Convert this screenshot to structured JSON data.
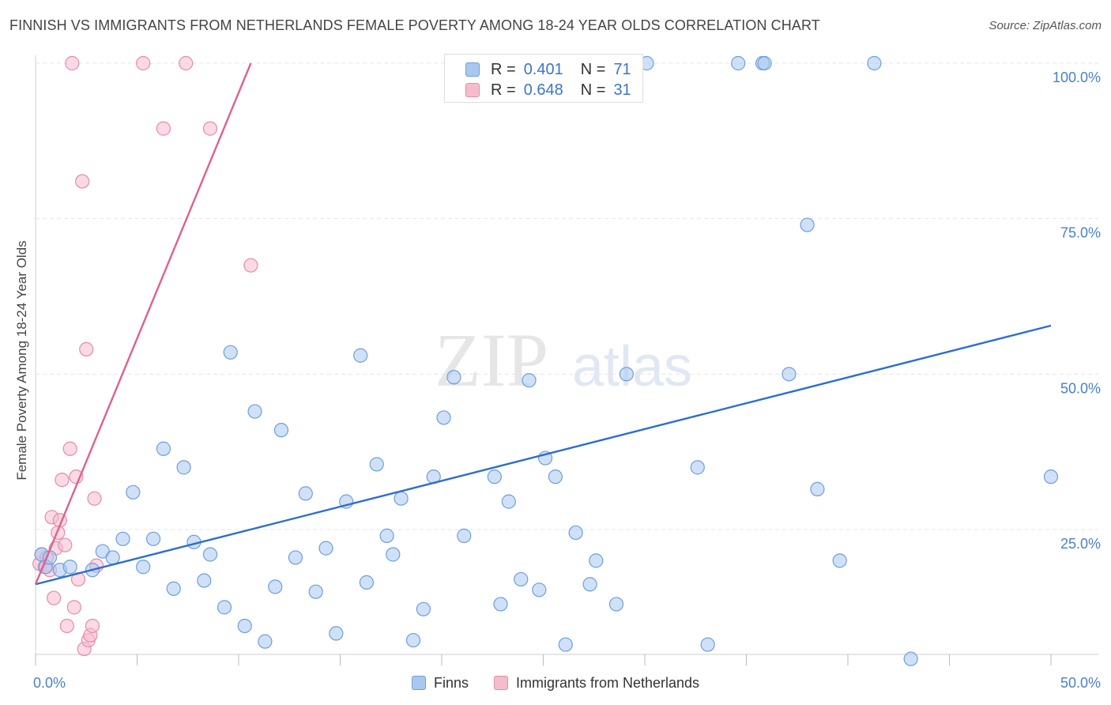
{
  "header": {
    "title": "FINNISH VS IMMIGRANTS FROM NETHERLANDS FEMALE POVERTY AMONG 18-24 YEAR OLDS CORRELATION CHART",
    "source": "Source: ZipAtlas.com"
  },
  "watermark": {
    "zip": "ZIP",
    "atlas": "atlas"
  },
  "legend_top": {
    "r_label": "R =",
    "n_label": "N =",
    "finns": {
      "r": "0.401",
      "n": "71"
    },
    "netherlands": {
      "r": "0.648",
      "n": "31"
    }
  },
  "colors": {
    "finns_fill": "#a9c8f0",
    "finns_stroke": "#6a9fe0",
    "finns_line": "#2d6ecf",
    "nl_fill": "#f6bccd",
    "nl_stroke": "#ea8aa8",
    "nl_line": "#e0608e",
    "tick_label": "#4a80cc"
  },
  "chart_data": {
    "type": "scatter",
    "title": "FINNISH VS IMMIGRANTS FROM NETHERLANDS FEMALE POVERTY AMONG 18-24 YEAR OLDS CORRELATION CHART",
    "xlabel": "",
    "ylabel": "Female Poverty Among 18-24 Year Olds",
    "xlim": [
      0,
      50
    ],
    "ylim": [
      0,
      103
    ],
    "x_tick_labels": [
      {
        "value": 0,
        "label": "0.0%"
      },
      {
        "value": 50,
        "label": "50.0%"
      }
    ],
    "y_tick_labels": [
      {
        "value": 25,
        "label": "25.0%"
      },
      {
        "value": 50,
        "label": "50.0%"
      },
      {
        "value": 75,
        "label": "75.0%"
      },
      {
        "value": 100,
        "label": "100.0%"
      }
    ],
    "grid": true,
    "legend_placement": "bottom-center",
    "series": [
      {
        "name": "Finns",
        "r": 0.401,
        "n": 71,
        "trend": [
          [
            0,
            16.2
          ],
          [
            50,
            57.8
          ]
        ],
        "points": [
          [
            0.3,
            21
          ],
          [
            0.5,
            19
          ],
          [
            0.7,
            20.5
          ],
          [
            1.2,
            18.5
          ],
          [
            1.7,
            19
          ],
          [
            2.8,
            18.5
          ],
          [
            3.3,
            21.5
          ],
          [
            3.8,
            20.5
          ],
          [
            4.3,
            23.5
          ],
          [
            4.8,
            31
          ],
          [
            5.3,
            19
          ],
          [
            5.8,
            23.5
          ],
          [
            6.3,
            38
          ],
          [
            6.8,
            15.5
          ],
          [
            7.3,
            35
          ],
          [
            7.8,
            23
          ],
          [
            8.3,
            16.8
          ],
          [
            8.6,
            21
          ],
          [
            9.3,
            12.5
          ],
          [
            9.6,
            53.5
          ],
          [
            10.3,
            9.5
          ],
          [
            10.8,
            44
          ],
          [
            11.3,
            7
          ],
          [
            11.8,
            15.8
          ],
          [
            12.1,
            41
          ],
          [
            12.8,
            20.5
          ],
          [
            13.3,
            30.8
          ],
          [
            13.8,
            15
          ],
          [
            14.3,
            22
          ],
          [
            14.8,
            8.3
          ],
          [
            15.3,
            29.5
          ],
          [
            16.0,
            53
          ],
          [
            16.3,
            16.5
          ],
          [
            16.8,
            35.5
          ],
          [
            17.3,
            24
          ],
          [
            17.6,
            21
          ],
          [
            18.0,
            30
          ],
          [
            18.6,
            7.2
          ],
          [
            19.1,
            12.2
          ],
          [
            19.6,
            33.5
          ],
          [
            20.1,
            43
          ],
          [
            20.6,
            49.5
          ],
          [
            21.1,
            24
          ],
          [
            22.6,
            33.5
          ],
          [
            22.9,
            13
          ],
          [
            23.3,
            29.5
          ],
          [
            23.9,
            17
          ],
          [
            24.3,
            49
          ],
          [
            24.8,
            15.3
          ],
          [
            25.1,
            36.5
          ],
          [
            25.6,
            33.5
          ],
          [
            26.1,
            6.5
          ],
          [
            26.6,
            24.5
          ],
          [
            27.3,
            16.2
          ],
          [
            27.6,
            20
          ],
          [
            28.6,
            13
          ],
          [
            29.1,
            50
          ],
          [
            30.1,
            100
          ],
          [
            32.6,
            35
          ],
          [
            33.1,
            6.5
          ],
          [
            34.6,
            100
          ],
          [
            35.8,
            100
          ],
          [
            35.9,
            100
          ],
          [
            37.1,
            50
          ],
          [
            38.0,
            74
          ],
          [
            38.5,
            31.5
          ],
          [
            39.6,
            20
          ],
          [
            41.3,
            100
          ],
          [
            43.1,
            4.2
          ],
          [
            50.0,
            33.5
          ],
          [
            21.6,
            100
          ]
        ]
      },
      {
        "name": "Immigrants from Netherlands",
        "r": 0.648,
        "n": 31,
        "trend": [
          [
            0,
            16.2
          ],
          [
            10.6,
            100
          ]
        ],
        "points": [
          [
            0.2,
            19.5
          ],
          [
            0.3,
            21
          ],
          [
            0.45,
            19
          ],
          [
            0.55,
            20.5
          ],
          [
            0.7,
            18.5
          ],
          [
            0.8,
            27
          ],
          [
            0.9,
            14
          ],
          [
            1.0,
            22
          ],
          [
            1.1,
            24.5
          ],
          [
            1.2,
            26.5
          ],
          [
            1.3,
            33
          ],
          [
            1.45,
            22.5
          ],
          [
            1.55,
            9.5
          ],
          [
            1.7,
            38
          ],
          [
            1.9,
            12.5
          ],
          [
            2.0,
            33.5
          ],
          [
            2.1,
            17
          ],
          [
            2.4,
            5.8
          ],
          [
            2.5,
            54
          ],
          [
            2.6,
            7.2
          ],
          [
            2.7,
            8
          ],
          [
            2.8,
            9.5
          ],
          [
            2.9,
            30
          ],
          [
            3.0,
            19.2
          ],
          [
            1.8,
            100
          ],
          [
            5.3,
            100
          ],
          [
            6.3,
            89.5
          ],
          [
            7.4,
            100
          ],
          [
            8.6,
            89.5
          ],
          [
            10.6,
            67.5
          ],
          [
            2.3,
            81
          ]
        ]
      }
    ]
  },
  "legend_bottom": {
    "finns": "Finns",
    "netherlands": "Immigrants from Netherlands"
  }
}
